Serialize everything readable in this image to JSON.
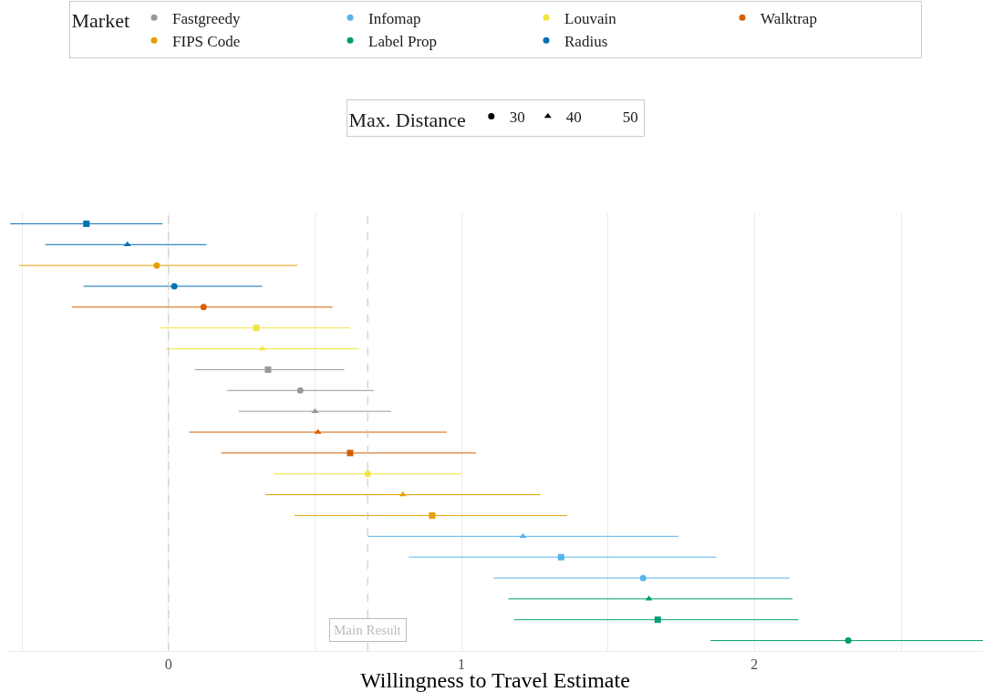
{
  "chart_data": {
    "type": "scatter",
    "orientation": "horizontal",
    "xlabel": "Willingness to Travel Estimate",
    "categories": [
      null,
      null,
      null,
      null,
      null,
      null,
      null,
      null,
      null,
      null,
      null,
      null,
      null,
      null,
      null,
      null,
      null,
      null,
      null,
      null,
      null
    ],
    "xlim": [
      -0.55,
      2.78
    ],
    "xticks": [
      {
        "value": -0.5,
        "label": null
      },
      0,
      {
        "value": 0.5,
        "label": null
      },
      1,
      {
        "value": 1.5,
        "label": null
      },
      2,
      {
        "value": 2.5,
        "label": null
      }
    ],
    "grid": "x",
    "legend": "top",
    "legend_title": "Market",
    "annotations": [
      "Max. Distance",
      "30",
      "40",
      "50"
    ],
    "ref_lines": [
      {
        "axis": "x",
        "value": 0,
        "color": "#cccccc",
        "line_style": "dashed"
      },
      {
        "axis": "x",
        "value": 0.68,
        "label": "Main Result",
        "color": "#cccccc",
        "line_style": "dashed"
      }
    ],
    "series": [
      {
        "name": "Fastgreedy",
        "color": "#999999",
        "values": [
          null,
          null,
          null,
          null,
          null,
          null,
          null,
          0.34,
          0.45,
          0.5,
          null,
          null,
          null,
          null,
          null,
          null,
          null,
          null,
          null,
          null,
          null
        ],
        "errors": [
          null,
          null,
          null,
          null,
          null,
          null,
          null,
          [
            0.09,
            0.6
          ],
          [
            0.2,
            0.7
          ],
          [
            0.24,
            0.76
          ],
          null,
          null,
          null,
          null,
          null,
          null,
          null,
          null,
          null,
          null,
          null
        ],
        "marker": [
          null,
          null,
          null,
          null,
          null,
          null,
          null,
          "square",
          "circle",
          "triangle",
          null,
          null,
          null,
          null,
          null,
          null,
          null,
          null,
          null,
          null,
          null
        ]
      },
      {
        "name": "FIPS Code",
        "color": "#e69f00",
        "values": [
          null,
          null,
          -0.04,
          null,
          null,
          null,
          null,
          null,
          null,
          null,
          null,
          null,
          null,
          0.8,
          0.9,
          null,
          null,
          null,
          null,
          null,
          null
        ],
        "errors": [
          null,
          null,
          [
            -0.51,
            0.44
          ],
          null,
          null,
          null,
          null,
          null,
          null,
          null,
          null,
          null,
          null,
          [
            0.33,
            1.27
          ],
          [
            0.43,
            1.36
          ],
          null,
          null,
          null,
          null,
          null,
          null
        ],
        "marker": [
          null,
          null,
          "circle",
          null,
          null,
          null,
          null,
          null,
          null,
          null,
          null,
          null,
          null,
          "triangle",
          "square",
          null,
          null,
          null,
          null,
          null,
          null
        ]
      },
      {
        "name": "Infomap",
        "color": "#56b4e9",
        "values": [
          null,
          null,
          null,
          null,
          null,
          null,
          null,
          null,
          null,
          null,
          null,
          null,
          null,
          null,
          null,
          1.21,
          1.34,
          1.62,
          null,
          null,
          null
        ],
        "errors": [
          null,
          null,
          null,
          null,
          null,
          null,
          null,
          null,
          null,
          null,
          null,
          null,
          null,
          null,
          null,
          [
            0.68,
            1.74
          ],
          [
            0.82,
            1.87
          ],
          [
            1.11,
            2.12
          ],
          null,
          null,
          null
        ],
        "marker": [
          null,
          null,
          null,
          null,
          null,
          null,
          null,
          null,
          null,
          null,
          null,
          null,
          null,
          null,
          null,
          "triangle",
          "square",
          "circle",
          null,
          null,
          null
        ]
      },
      {
        "name": "Label Prop",
        "color": "#009e73",
        "values": [
          null,
          null,
          null,
          null,
          null,
          null,
          null,
          null,
          null,
          null,
          null,
          null,
          null,
          null,
          null,
          null,
          null,
          null,
          1.64,
          1.67,
          2.32
        ],
        "errors": [
          null,
          null,
          null,
          null,
          null,
          null,
          null,
          null,
          null,
          null,
          null,
          null,
          null,
          null,
          null,
          null,
          null,
          null,
          [
            1.16,
            2.13
          ],
          [
            1.18,
            2.15
          ],
          [
            1.85,
            2.78
          ]
        ],
        "marker": [
          null,
          null,
          null,
          null,
          null,
          null,
          null,
          null,
          null,
          null,
          null,
          null,
          null,
          null,
          null,
          null,
          null,
          null,
          "triangle",
          "square",
          "circle"
        ]
      },
      {
        "name": "Louvain",
        "color": "#f0e442",
        "values": [
          null,
          null,
          null,
          null,
          null,
          0.3,
          0.32,
          null,
          null,
          null,
          null,
          null,
          0.68,
          null,
          null,
          null,
          null,
          null,
          null,
          null,
          null
        ],
        "errors": [
          null,
          null,
          null,
          null,
          null,
          [
            -0.03,
            0.62
          ],
          [
            -0.01,
            0.65
          ],
          null,
          null,
          null,
          null,
          null,
          [
            0.36,
            1.0
          ],
          null,
          null,
          null,
          null,
          null,
          null,
          null,
          null
        ],
        "marker": [
          null,
          null,
          null,
          null,
          null,
          "square",
          "triangle",
          null,
          null,
          null,
          null,
          null,
          "circle",
          null,
          null,
          null,
          null,
          null,
          null,
          null,
          null
        ]
      },
      {
        "name": "Radius",
        "color": "#0072b2",
        "values": [
          -0.28,
          -0.14,
          null,
          0.02,
          null,
          null,
          null,
          null,
          null,
          null,
          null,
          null,
          null,
          null,
          null,
          null,
          null,
          null,
          null,
          null,
          null
        ],
        "errors": [
          [
            -0.54,
            -0.02
          ],
          [
            -0.42,
            0.13
          ],
          null,
          [
            -0.29,
            0.32
          ],
          null,
          null,
          null,
          null,
          null,
          null,
          null,
          null,
          null,
          null,
          null,
          null,
          null,
          null,
          null,
          null,
          null
        ],
        "marker": [
          "square",
          "triangle",
          null,
          "circle",
          null,
          null,
          null,
          null,
          null,
          null,
          null,
          null,
          null,
          null,
          null,
          null,
          null,
          null,
          null,
          null,
          null
        ]
      },
      {
        "name": "Walktrap",
        "color": "#d55e00",
        "values": [
          null,
          null,
          null,
          null,
          0.12,
          null,
          null,
          null,
          null,
          null,
          0.51,
          0.62,
          null,
          null,
          null,
          null,
          null,
          null,
          null,
          null,
          null
        ],
        "errors": [
          null,
          null,
          null,
          null,
          [
            -0.33,
            0.56
          ],
          null,
          null,
          null,
          null,
          null,
          [
            0.07,
            0.95
          ],
          [
            0.18,
            1.05
          ],
          null,
          null,
          null,
          null,
          null,
          null,
          null,
          null,
          null
        ],
        "marker": [
          null,
          null,
          null,
          null,
          "circle",
          null,
          null,
          null,
          null,
          null,
          "triangle",
          "square",
          null,
          null,
          null,
          null,
          null,
          null,
          null,
          null,
          null
        ]
      }
    ]
  }
}
